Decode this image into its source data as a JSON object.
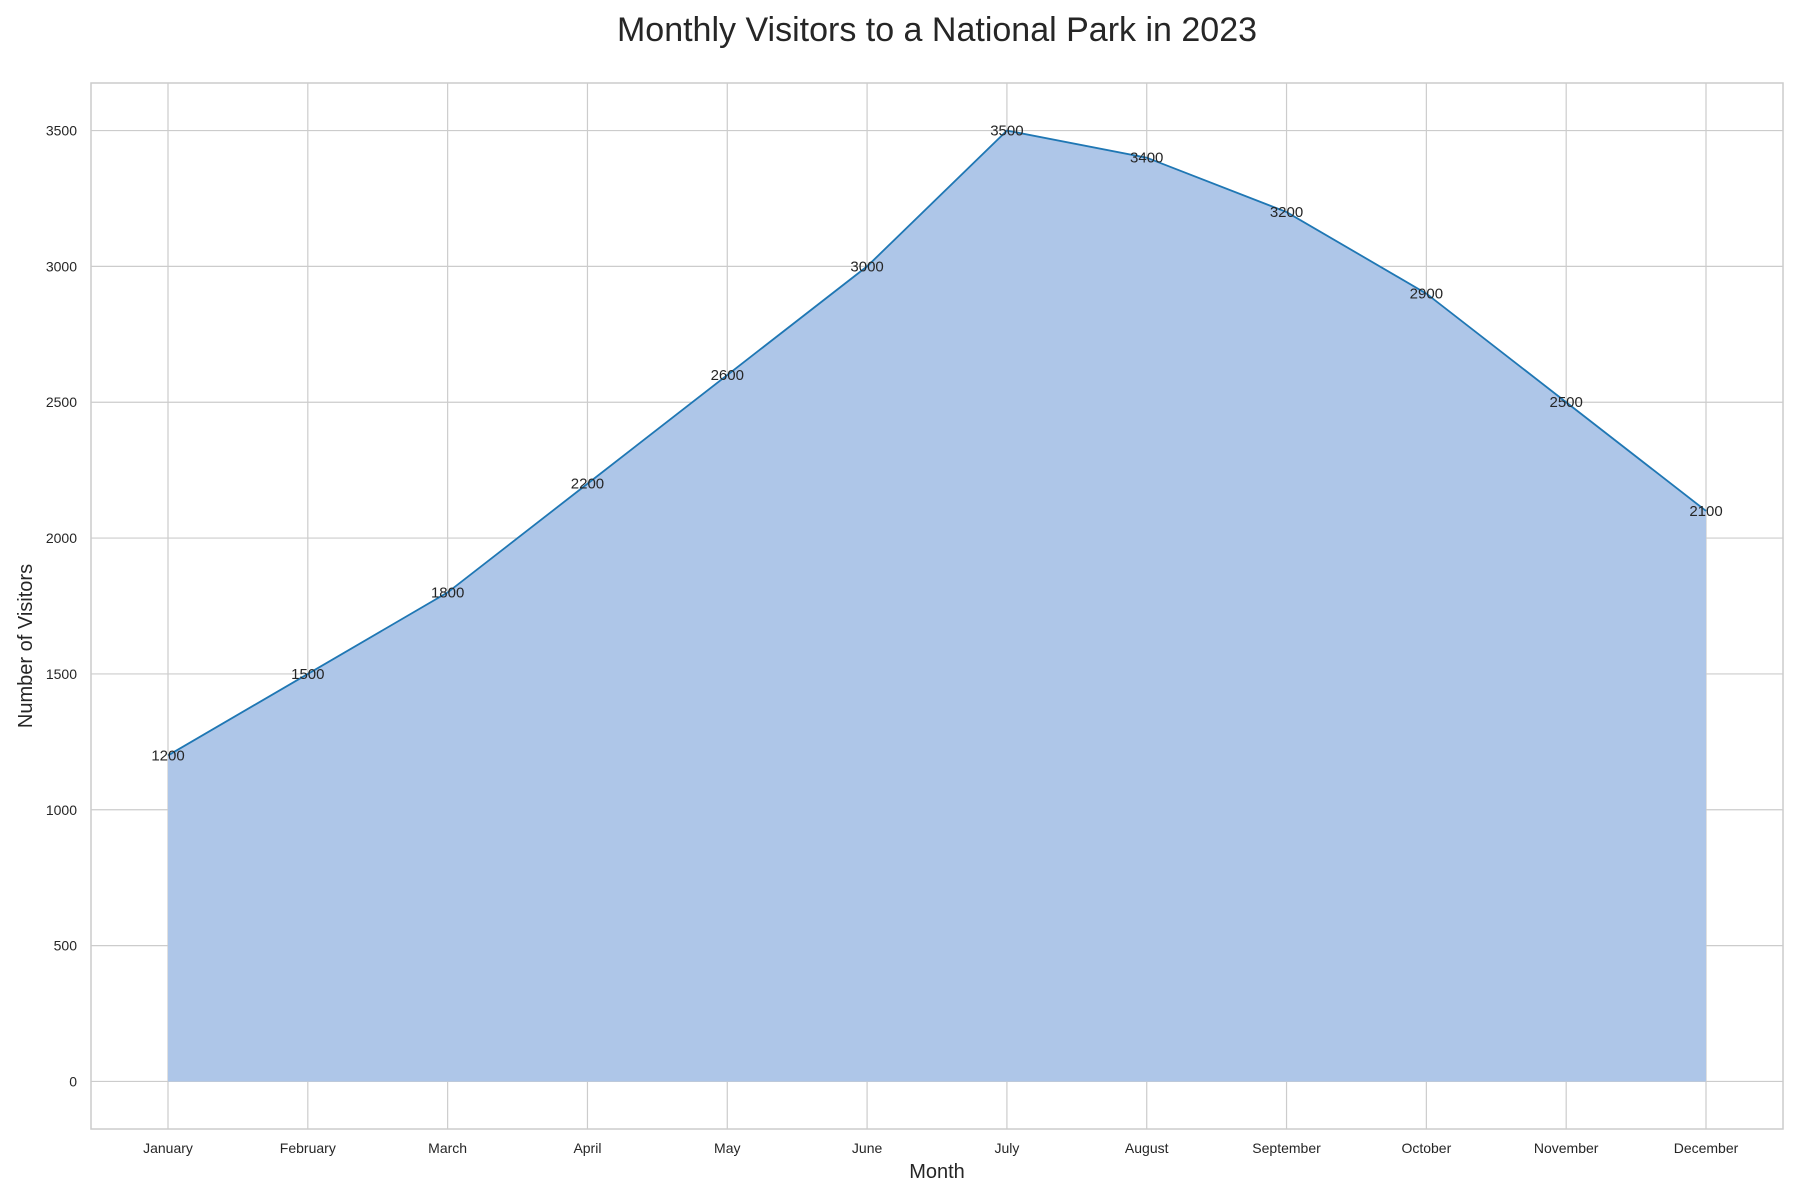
{
  "chart_data": {
    "type": "area",
    "title": "Monthly Visitors to a National Park in 2023",
    "xlabel": "Month",
    "ylabel": "Number of Visitors",
    "categories": [
      "January",
      "February",
      "March",
      "April",
      "May",
      "June",
      "July",
      "August",
      "September",
      "October",
      "November",
      "December"
    ],
    "series": [
      {
        "values": [
          1200,
          1500,
          1800,
          2200,
          2600,
          3000,
          3500,
          3400,
          3200,
          2900,
          2500,
          2100
        ],
        "line_color": "#1f77b4",
        "fill_color": "#aec6e8"
      }
    ],
    "ylim": [
      -175,
      3675
    ],
    "yticks": [
      0,
      500,
      1000,
      1500,
      2000,
      2500,
      3000,
      3500
    ],
    "grid": true,
    "data_labels": true
  }
}
